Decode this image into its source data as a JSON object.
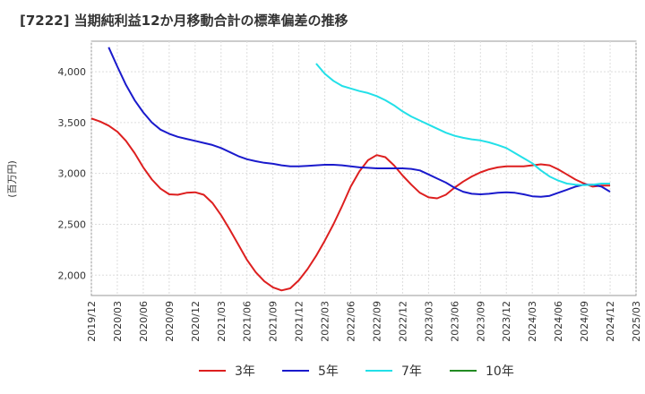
{
  "chart_data": {
    "type": "line",
    "title": "[7222]  当期純利益12か月移動合計の標準偏差の推移",
    "ylabel": "(百万円)",
    "xlabel": "",
    "ylim": [
      1800,
      4300
    ],
    "y_ticks": [
      2000,
      2500,
      3000,
      3500,
      4000
    ],
    "y_tick_labels": [
      "2,000",
      "2,500",
      "3,000",
      "3,500",
      "4,000"
    ],
    "x_start": "2019-12",
    "x_end": "2025-03",
    "x_ticks": [
      "2019/12",
      "2020/03",
      "2020/06",
      "2020/09",
      "2020/12",
      "2021/03",
      "2021/06",
      "2021/09",
      "2021/12",
      "2022/03",
      "2022/06",
      "2022/09",
      "2022/12",
      "2023/03",
      "2023/06",
      "2023/09",
      "2023/12",
      "2024/03",
      "2024/06",
      "2024/09",
      "2024/12",
      "2025/03"
    ],
    "grid": true,
    "legend_position": "bottom",
    "series": [
      {
        "name": "3年",
        "color": "#dd1f1f",
        "points": [
          [
            "2019-12",
            3540
          ],
          [
            "2020-01",
            3510
          ],
          [
            "2020-02",
            3470
          ],
          [
            "2020-03",
            3410
          ],
          [
            "2020-04",
            3320
          ],
          [
            "2020-05",
            3200
          ],
          [
            "2020-06",
            3060
          ],
          [
            "2020-07",
            2940
          ],
          [
            "2020-08",
            2850
          ],
          [
            "2020-09",
            2795
          ],
          [
            "2020-10",
            2790
          ],
          [
            "2020-11",
            2810
          ],
          [
            "2020-12",
            2815
          ],
          [
            "2021-01",
            2790
          ],
          [
            "2021-02",
            2710
          ],
          [
            "2021-03",
            2590
          ],
          [
            "2021-04",
            2450
          ],
          [
            "2021-05",
            2300
          ],
          [
            "2021-06",
            2150
          ],
          [
            "2021-07",
            2030
          ],
          [
            "2021-08",
            1940
          ],
          [
            "2021-09",
            1880
          ],
          [
            "2021-10",
            1850
          ],
          [
            "2021-11",
            1870
          ],
          [
            "2021-12",
            1950
          ],
          [
            "2022-01",
            2060
          ],
          [
            "2022-02",
            2190
          ],
          [
            "2022-03",
            2340
          ],
          [
            "2022-04",
            2500
          ],
          [
            "2022-05",
            2680
          ],
          [
            "2022-06",
            2870
          ],
          [
            "2022-07",
            3020
          ],
          [
            "2022-08",
            3130
          ],
          [
            "2022-09",
            3180
          ],
          [
            "2022-10",
            3160
          ],
          [
            "2022-11",
            3080
          ],
          [
            "2022-12",
            2980
          ],
          [
            "2023-01",
            2890
          ],
          [
            "2023-02",
            2810
          ],
          [
            "2023-03",
            2765
          ],
          [
            "2023-04",
            2755
          ],
          [
            "2023-05",
            2790
          ],
          [
            "2023-06",
            2860
          ],
          [
            "2023-07",
            2920
          ],
          [
            "2023-08",
            2970
          ],
          [
            "2023-09",
            3010
          ],
          [
            "2023-10",
            3040
          ],
          [
            "2023-11",
            3060
          ],
          [
            "2023-12",
            3070
          ],
          [
            "2024-01",
            3070
          ],
          [
            "2024-02",
            3070
          ],
          [
            "2024-03",
            3080
          ],
          [
            "2024-04",
            3090
          ],
          [
            "2024-05",
            3080
          ],
          [
            "2024-06",
            3040
          ],
          [
            "2024-07",
            2990
          ],
          [
            "2024-08",
            2940
          ],
          [
            "2024-09",
            2900
          ],
          [
            "2024-10",
            2870
          ],
          [
            "2024-11",
            2880
          ],
          [
            "2024-12",
            2880
          ]
        ]
      },
      {
        "name": "5年",
        "color": "#1a1acc",
        "points": [
          [
            "2020-02",
            4240
          ],
          [
            "2020-03",
            4050
          ],
          [
            "2020-04",
            3870
          ],
          [
            "2020-05",
            3720
          ],
          [
            "2020-06",
            3600
          ],
          [
            "2020-07",
            3500
          ],
          [
            "2020-08",
            3430
          ],
          [
            "2020-09",
            3390
          ],
          [
            "2020-10",
            3360
          ],
          [
            "2020-11",
            3340
          ],
          [
            "2020-12",
            3320
          ],
          [
            "2021-01",
            3300
          ],
          [
            "2021-02",
            3280
          ],
          [
            "2021-03",
            3250
          ],
          [
            "2021-04",
            3210
          ],
          [
            "2021-05",
            3170
          ],
          [
            "2021-06",
            3140
          ],
          [
            "2021-07",
            3120
          ],
          [
            "2021-08",
            3105
          ],
          [
            "2021-09",
            3095
          ],
          [
            "2021-10",
            3080
          ],
          [
            "2021-11",
            3070
          ],
          [
            "2021-12",
            3070
          ],
          [
            "2022-01",
            3075
          ],
          [
            "2022-02",
            3080
          ],
          [
            "2022-03",
            3085
          ],
          [
            "2022-04",
            3085
          ],
          [
            "2022-05",
            3080
          ],
          [
            "2022-06",
            3070
          ],
          [
            "2022-07",
            3060
          ],
          [
            "2022-08",
            3055
          ],
          [
            "2022-09",
            3050
          ],
          [
            "2022-10",
            3050
          ],
          [
            "2022-11",
            3050
          ],
          [
            "2022-12",
            3050
          ],
          [
            "2023-01",
            3045
          ],
          [
            "2023-02",
            3030
          ],
          [
            "2023-03",
            2990
          ],
          [
            "2023-04",
            2950
          ],
          [
            "2023-05",
            2910
          ],
          [
            "2023-06",
            2860
          ],
          [
            "2023-07",
            2820
          ],
          [
            "2023-08",
            2800
          ],
          [
            "2023-09",
            2795
          ],
          [
            "2023-10",
            2800
          ],
          [
            "2023-11",
            2810
          ],
          [
            "2023-12",
            2815
          ],
          [
            "2024-01",
            2810
          ],
          [
            "2024-02",
            2795
          ],
          [
            "2024-03",
            2775
          ],
          [
            "2024-04",
            2770
          ],
          [
            "2024-05",
            2780
          ],
          [
            "2024-06",
            2810
          ],
          [
            "2024-07",
            2840
          ],
          [
            "2024-08",
            2870
          ],
          [
            "2024-09",
            2890
          ],
          [
            "2024-10",
            2890
          ],
          [
            "2024-11",
            2870
          ],
          [
            "2024-12",
            2820
          ]
        ]
      },
      {
        "name": "7年",
        "color": "#22e0e8",
        "points": [
          [
            "2022-02",
            4080
          ],
          [
            "2022-03",
            3980
          ],
          [
            "2022-04",
            3910
          ],
          [
            "2022-05",
            3860
          ],
          [
            "2022-06",
            3835
          ],
          [
            "2022-07",
            3810
          ],
          [
            "2022-08",
            3790
          ],
          [
            "2022-09",
            3760
          ],
          [
            "2022-10",
            3720
          ],
          [
            "2022-11",
            3670
          ],
          [
            "2022-12",
            3610
          ],
          [
            "2023-01",
            3560
          ],
          [
            "2023-02",
            3520
          ],
          [
            "2023-03",
            3480
          ],
          [
            "2023-04",
            3440
          ],
          [
            "2023-05",
            3400
          ],
          [
            "2023-06",
            3370
          ],
          [
            "2023-07",
            3350
          ],
          [
            "2023-08",
            3335
          ],
          [
            "2023-09",
            3325
          ],
          [
            "2023-10",
            3305
          ],
          [
            "2023-11",
            3280
          ],
          [
            "2023-12",
            3250
          ],
          [
            "2024-01",
            3200
          ],
          [
            "2024-02",
            3150
          ],
          [
            "2024-03",
            3100
          ],
          [
            "2024-04",
            3030
          ],
          [
            "2024-05",
            2970
          ],
          [
            "2024-06",
            2930
          ],
          [
            "2024-07",
            2900
          ],
          [
            "2024-08",
            2890
          ],
          [
            "2024-09",
            2885
          ],
          [
            "2024-10",
            2890
          ],
          [
            "2024-11",
            2900
          ],
          [
            "2024-12",
            2900
          ]
        ]
      },
      {
        "name": "10年",
        "color": "#228b22",
        "points": []
      }
    ]
  }
}
